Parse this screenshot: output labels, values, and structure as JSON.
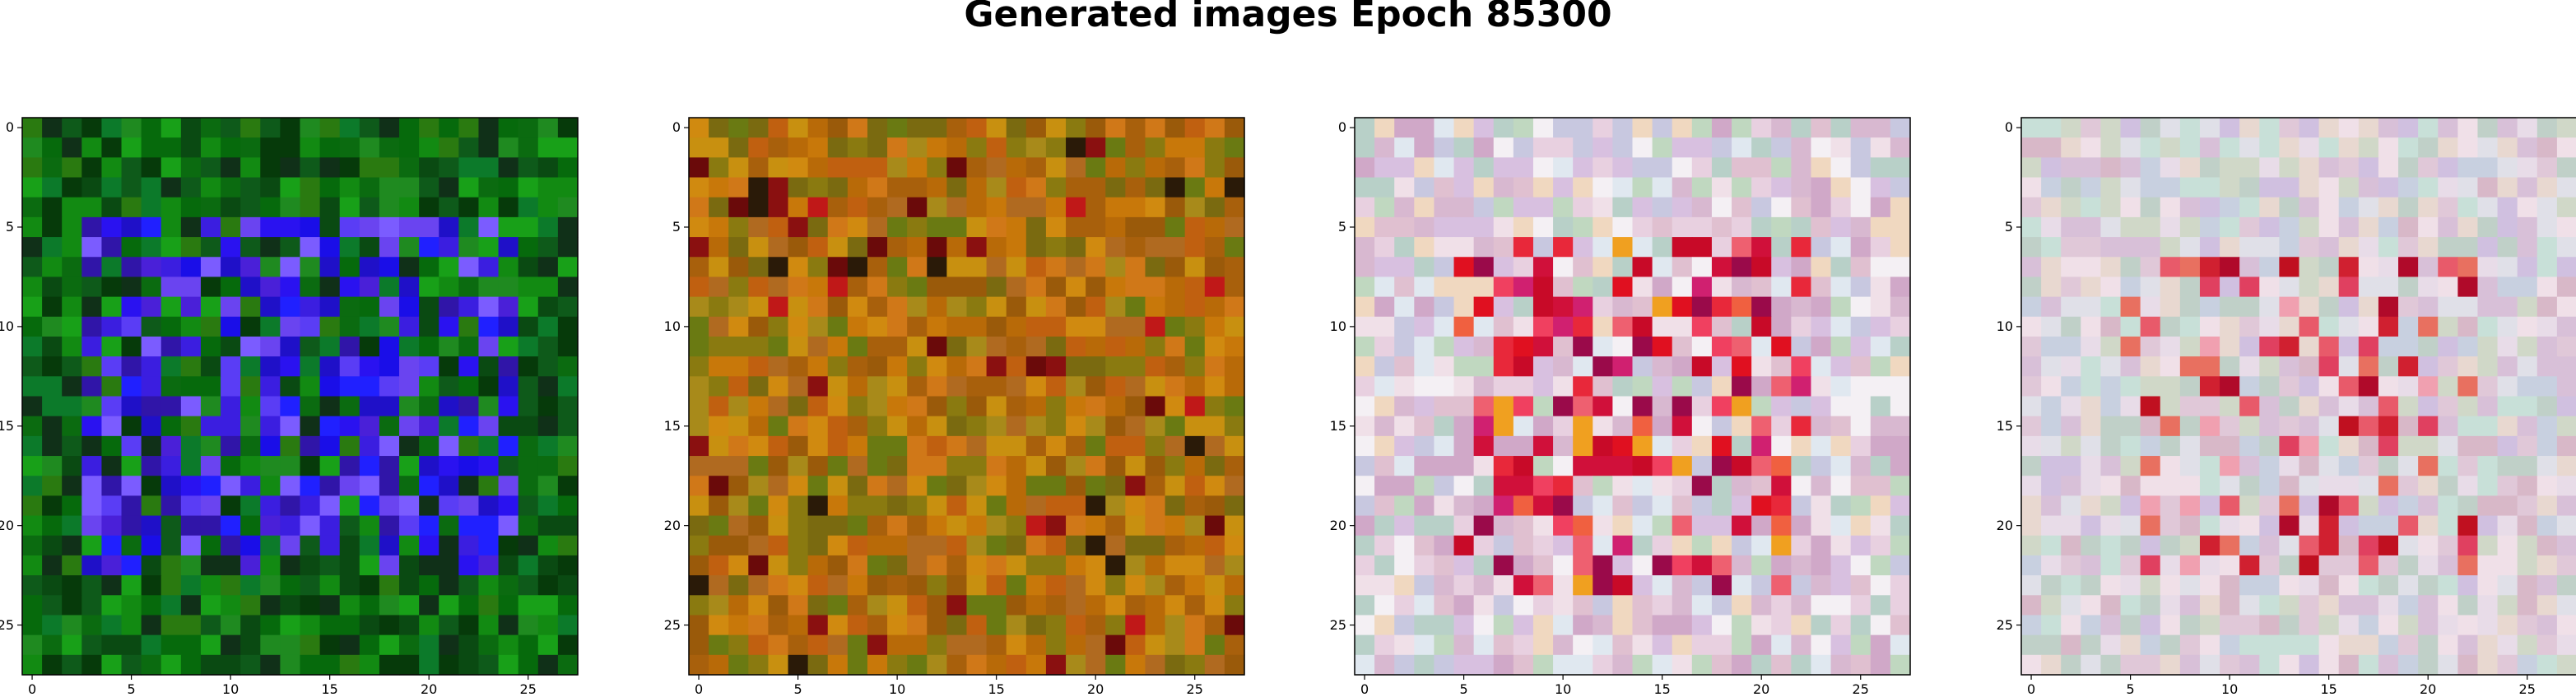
{
  "figure": {
    "title": "Generated images Epoch 85300"
  },
  "chart_data": [
    {
      "type": "heatmap",
      "palette": "green-blue",
      "xticks": [
        0,
        5,
        10,
        15,
        20,
        25
      ],
      "yticks": [
        0,
        5,
        10,
        15,
        20,
        25
      ],
      "xlim": [
        -0.5,
        27.5
      ],
      "ylim": [
        27.5,
        -0.5
      ],
      "grid_size": [
        28,
        28
      ]
    },
    {
      "type": "heatmap",
      "palette": "orange-olive",
      "xticks": [
        0,
        5,
        10,
        15,
        20,
        25
      ],
      "yticks": [
        0,
        5,
        10,
        15,
        20,
        25
      ],
      "xlim": [
        -0.5,
        27.5
      ],
      "ylim": [
        27.5,
        -0.5
      ],
      "grid_size": [
        28,
        28
      ]
    },
    {
      "type": "heatmap",
      "palette": "pastel-red",
      "xticks": [
        0,
        5,
        10,
        15,
        20,
        25
      ],
      "yticks": [
        0,
        5,
        10,
        15,
        20,
        25
      ],
      "xlim": [
        -0.5,
        27.5
      ],
      "ylim": [
        27.5,
        -0.5
      ],
      "grid_size": [
        28,
        28
      ]
    },
    {
      "type": "heatmap",
      "palette": "pastel-pink",
      "xticks": [
        0,
        5,
        10,
        15,
        20,
        25
      ],
      "yticks": [
        0,
        5,
        10,
        15,
        20,
        25
      ],
      "xlim": [
        -0.5,
        27.5
      ],
      "ylim": [
        27.5,
        -0.5
      ],
      "grid_size": [
        28,
        28
      ]
    }
  ]
}
